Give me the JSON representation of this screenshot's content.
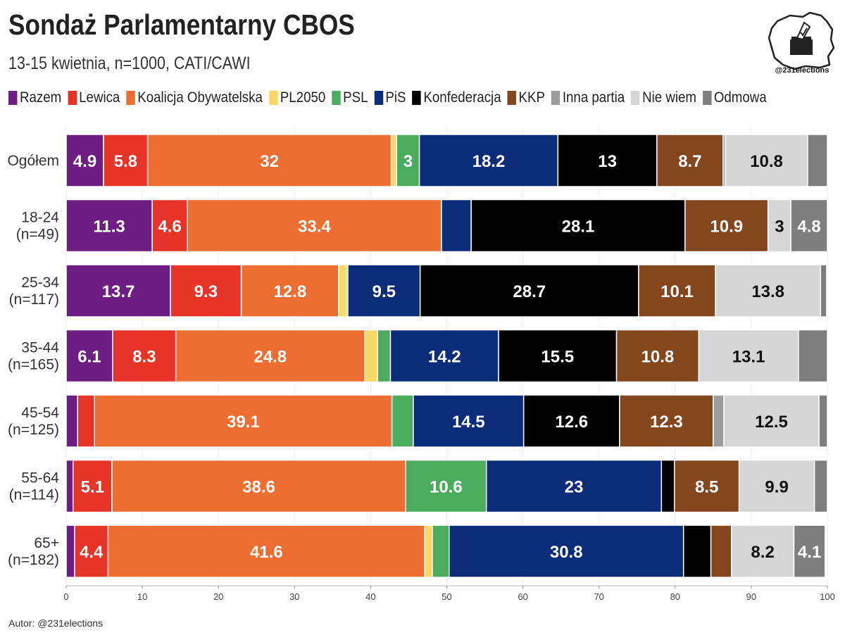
{
  "header": {
    "title": "Sondaż Parlamentarny CBOS",
    "subtitle": "13-15 kwietnia, n=1000, CATI/CAWI"
  },
  "logo": {
    "handle": "@231elections"
  },
  "footer": {
    "author": "Autor: @231elections"
  },
  "chart_data": {
    "type": "bar",
    "orientation": "horizontal",
    "stacked": true,
    "xlim": [
      0,
      100
    ],
    "xticks": [
      "0",
      "10",
      "20",
      "30",
      "40",
      "50",
      "60",
      "70",
      "80",
      "90",
      "100"
    ],
    "legend_position": "top",
    "parties": [
      {
        "name": "Razem",
        "color": "#6e1e82"
      },
      {
        "name": "Lewica",
        "color": "#e63429"
      },
      {
        "name": "Koalicja Obywatelska",
        "color": "#ee6d31"
      },
      {
        "name": "PL2050",
        "color": "#f8d86b"
      },
      {
        "name": "PSL",
        "color": "#4aac5c"
      },
      {
        "name": "PiS",
        "color": "#0b2d79"
      },
      {
        "name": "Konfederacja",
        "color": "#000000"
      },
      {
        "name": "KKP",
        "color": "#83461d"
      },
      {
        "name": "Inna partia",
        "color": "#9d9d9d"
      },
      {
        "name": "Nie wiem",
        "color": "#d6d6d6"
      },
      {
        "name": "Odmowa",
        "color": "#7e7e7e"
      }
    ],
    "rows": [
      {
        "label": [
          "Ogółem"
        ],
        "values": [
          4.9,
          5.8,
          32,
          0.7,
          3,
          18.2,
          13,
          8.7,
          0.3,
          10.8,
          2.6
        ]
      },
      {
        "label": [
          "18-24",
          "(n=49)"
        ],
        "values": [
          11.3,
          4.6,
          33.4,
          0,
          0,
          3.9,
          28.1,
          10.9,
          0,
          3,
          4.8
        ]
      },
      {
        "label": [
          "25-34",
          "(n=117)"
        ],
        "values": [
          13.7,
          9.3,
          12.8,
          1,
          0.2,
          9.5,
          28.7,
          10.1,
          0,
          13.8,
          0.8
        ]
      },
      {
        "label": [
          "35-44",
          "(n=165)"
        ],
        "values": [
          6.1,
          8.3,
          24.8,
          1.7,
          1.7,
          14.2,
          15.5,
          10.8,
          0,
          13.1,
          3.8
        ]
      },
      {
        "label": [
          "45-54",
          "(n=125)"
        ],
        "values": [
          1.5,
          2.2,
          39.1,
          0,
          2.8,
          14.5,
          12.6,
          12.3,
          1.4,
          12.5,
          1.1
        ]
      },
      {
        "label": [
          "55-64",
          "(n=114)"
        ],
        "values": [
          0.9,
          5.1,
          38.6,
          0,
          10.6,
          23,
          1.7,
          8.5,
          0,
          9.9,
          1.7
        ]
      },
      {
        "label": [
          "65+",
          "(n=182)"
        ],
        "values": [
          1.1,
          4.4,
          41.6,
          1,
          2.2,
          30.8,
          3.6,
          2.7,
          0,
          8.2,
          4.1
        ]
      }
    ],
    "data_labels": [
      [
        "4.9",
        "5.8",
        "32",
        "",
        "3",
        "18.2",
        "13",
        "8.7",
        "",
        "10.8",
        ""
      ],
      [
        "11.3",
        "4.6",
        "33.4",
        "",
        "",
        "",
        "28.1",
        "10.9",
        "",
        "3",
        "4.8"
      ],
      [
        "13.7",
        "9.3",
        "12.8",
        "",
        "",
        "9.5",
        "28.7",
        "10.1",
        "",
        "13.8",
        ""
      ],
      [
        "6.1",
        "8.3",
        "24.8",
        "",
        "",
        "14.2",
        "15.5",
        "10.8",
        "",
        "13.1",
        ""
      ],
      [
        "",
        "",
        "39.1",
        "",
        "",
        "14.5",
        "12.6",
        "12.3",
        "",
        "12.5",
        ""
      ],
      [
        "",
        "5.1",
        "38.6",
        "",
        "10.6",
        "23",
        "",
        "8.5",
        "",
        "9.9",
        ""
      ],
      [
        "",
        "4.4",
        "41.6",
        "",
        "",
        "30.8",
        "",
        "",
        "",
        "8.2",
        "4.1"
      ]
    ]
  }
}
